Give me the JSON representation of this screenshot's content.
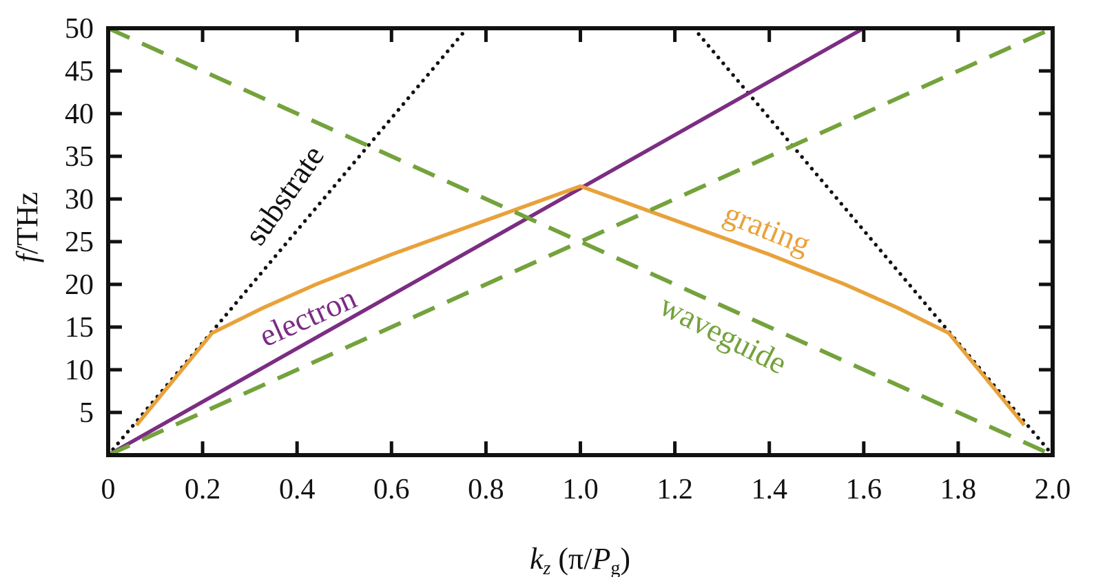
{
  "chart_data": {
    "type": "line",
    "xlabel": {
      "main": "k",
      "sub": "z",
      "paren_open": " (π/",
      "var": "P",
      "var_sub": "g",
      "paren_close": ")"
    },
    "ylabel": {
      "var": "f",
      "unit": "/THz"
    },
    "xlim": [
      0,
      2.0
    ],
    "ylim": [
      0,
      50
    ],
    "x_ticks": [
      "0",
      "0.2",
      "0.4",
      "0.6",
      "0.8",
      "1.0",
      "1.2",
      "1.4",
      "1.6",
      "1.8",
      "2.0"
    ],
    "y_ticks": [
      "5",
      "10",
      "15",
      "20",
      "25",
      "30",
      "35",
      "40",
      "45",
      "50"
    ],
    "grid": false,
    "series": [
      {
        "name": "substrate",
        "color": "#111111",
        "style": "dotted",
        "segments": [
          [
            [
              0,
              0
            ],
            [
              0.76,
              50
            ]
          ],
          [
            [
              1.24,
              50
            ],
            [
              2.0,
              0
            ]
          ]
        ]
      },
      {
        "name": "electron",
        "color": "#7b2d83",
        "style": "solid",
        "segments": [
          [
            [
              0,
              0
            ],
            [
              1.6,
              50
            ]
          ]
        ]
      },
      {
        "name": "grating",
        "color": "#e8a23a",
        "style": "solid",
        "segments": [
          [
            [
              0.06,
              3.5
            ],
            [
              0.22,
              14.3
            ],
            [
              0.33,
              17.3
            ],
            [
              0.44,
              20.0
            ],
            [
              0.6,
              23.5
            ],
            [
              0.8,
              27.5
            ],
            [
              1.0,
              31.5
            ],
            [
              1.2,
              27.5
            ],
            [
              1.4,
              23.5
            ],
            [
              1.56,
              20.0
            ],
            [
              1.67,
              17.3
            ],
            [
              1.78,
              14.3
            ],
            [
              1.94,
              3.5
            ]
          ]
        ]
      },
      {
        "name": "waveguide",
        "color": "#74a23c",
        "style": "dashed",
        "segments": [
          [
            [
              0,
              0
            ],
            [
              2.0,
              50
            ]
          ],
          [
            [
              0,
              50
            ],
            [
              2.0,
              0
            ]
          ]
        ]
      }
    ],
    "annotations": [
      {
        "text": "substrate",
        "color": "#111111"
      },
      {
        "text": "electron",
        "color": "#7b2d83"
      },
      {
        "text": "grating",
        "color": "#e8a23a"
      },
      {
        "text": "waveguide",
        "color": "#74a23c"
      }
    ]
  }
}
